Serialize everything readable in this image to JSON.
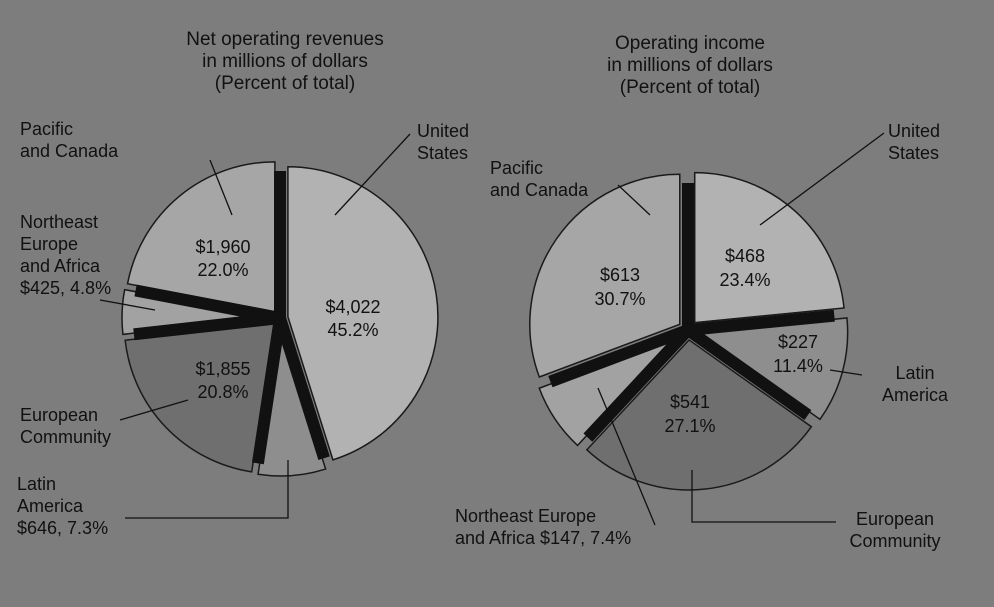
{
  "chart_data": [
    {
      "type": "pie",
      "title": "Net operating revenues\nin millions of dollars\n(Percent of total)",
      "slices": [
        {
          "name": "United States",
          "label": "United\nStates",
          "value": 4022,
          "value_label": "$4,022",
          "percent": 45.2,
          "percent_label": "45.2%",
          "color": "#b2b2b2"
        },
        {
          "name": "Latin America",
          "label": "Latin\nAmerica\n$646, 7.3%",
          "value": 646,
          "value_label": "$646",
          "percent": 7.3,
          "percent_label": "7.3%",
          "color": "#8e8e8e"
        },
        {
          "name": "European Community",
          "label": "European\nCommunity",
          "value": 1855,
          "value_label": "$1,855",
          "percent": 20.8,
          "percent_label": "20.8%",
          "color": "#6f6f6f"
        },
        {
          "name": "Northeast Europe and Africa",
          "label": "Northeast\nEurope\nand Africa\n$425, 4.8%",
          "value": 425,
          "value_label": "$425",
          "percent": 4.8,
          "percent_label": "4.8%",
          "color": "#a2a2a2"
        },
        {
          "name": "Pacific and Canada",
          "label": "Pacific\nand Canada",
          "value": 1960,
          "value_label": "$1,960",
          "percent": 22.0,
          "percent_label": "22.0%",
          "color": "#a6a6a6"
        }
      ]
    },
    {
      "type": "pie",
      "title": "Operating income\nin millions of dollars\n(Percent of total)",
      "slices": [
        {
          "name": "United States",
          "label": "United\nStates",
          "value": 468,
          "value_label": "$468",
          "percent": 23.4,
          "percent_label": "23.4%",
          "color": "#b2b2b2"
        },
        {
          "name": "Latin America",
          "label": "Latin\nAmerica",
          "value": 227,
          "value_label": "$227",
          "percent": 11.4,
          "percent_label": "11.4%",
          "color": "#8e8e8e"
        },
        {
          "name": "European Community",
          "label": "European\nCommunity",
          "value": 541,
          "value_label": "$541",
          "percent": 27.1,
          "percent_label": "27.1%",
          "color": "#6f6f6f"
        },
        {
          "name": "Northeast Europe and Africa",
          "label": "Northeast Europe\nand Africa $147, 7.4%",
          "value": 147,
          "value_label": "$147",
          "percent": 7.4,
          "percent_label": "7.4%",
          "color": "#a2a2a2"
        },
        {
          "name": "Pacific and Canada",
          "label": "Pacific\nand Canada",
          "value": 613,
          "value_label": "$613",
          "percent": 30.7,
          "percent_label": "30.7%",
          "color": "#a6a6a6"
        }
      ]
    }
  ]
}
